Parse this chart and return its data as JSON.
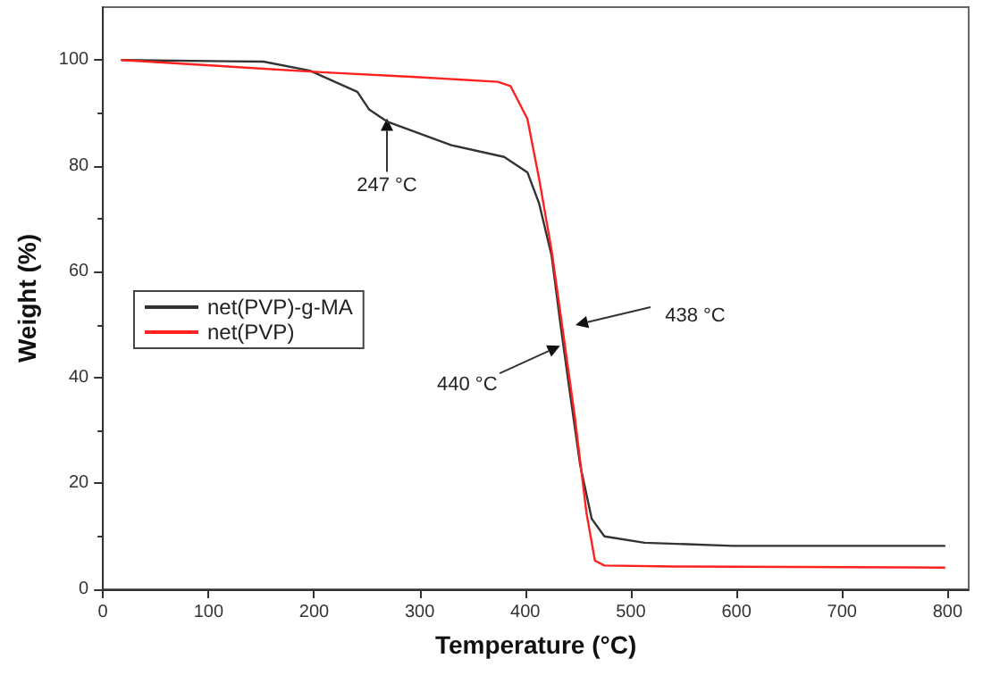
{
  "chart_data": {
    "type": "line",
    "xlabel": "Temperature (°C)",
    "ylabel": "Weight (%)",
    "xlim": [
      0,
      820
    ],
    "xticks": [
      0,
      100,
      200,
      300,
      400,
      500,
      600,
      700,
      800
    ],
    "ylim": [
      0,
      110
    ],
    "yticks": [
      0,
      20,
      40,
      60,
      80,
      100
    ],
    "series": [
      {
        "name": "net(PVP)-g-MA",
        "color": "#333333",
        "x": [
          18,
          152,
          196,
          241,
          252,
          269,
          330,
          380,
          402,
          413,
          425,
          433,
          441,
          452,
          463,
          475,
          513,
          597,
          797
        ],
        "values": [
          100,
          99.7,
          98,
          94,
          90.7,
          88.4,
          83.9,
          81.7,
          78.8,
          73,
          63,
          50.6,
          39,
          23.5,
          13.3,
          10,
          8.8,
          8.2,
          8.2
        ]
      },
      {
        "name": "net(PVP)",
        "color": "#ff2020",
        "x": [
          18,
          207,
          296,
          374,
          386,
          402,
          413,
          425,
          436,
          447,
          458,
          466,
          475,
          541,
          797
        ],
        "values": [
          100,
          97.7,
          96.8,
          95.9,
          95.1,
          88.9,
          77.7,
          64,
          48.3,
          32.5,
          14.4,
          5.4,
          4.5,
          4.3,
          4.1
        ]
      }
    ],
    "annotations": [
      {
        "text": "247 °C",
        "x": 269,
        "y": 89
      },
      {
        "text": "440 °C",
        "x": 433,
        "y": 46
      },
      "438 °C"
    ],
    "legend": "left",
    "grid": false,
    "marker": "none",
    "line_style": "solid"
  }
}
